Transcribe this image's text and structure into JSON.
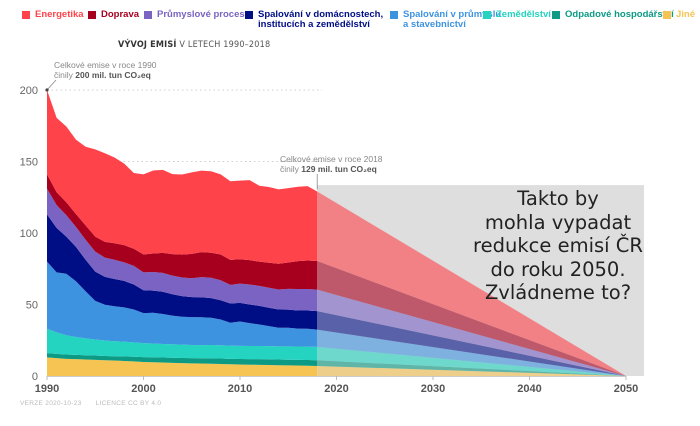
{
  "chart_data": {
    "type": "area",
    "stacked": true,
    "title": "VÝVOJ EMISÍ",
    "subtitle": "V LETECH 1990–2018",
    "xlabel": "",
    "ylabel": "",
    "xlim": [
      1990,
      2050
    ],
    "ylim": [
      0,
      200
    ],
    "x_ticks": [
      "1990",
      "2000",
      "2010",
      "2020",
      "2030",
      "2040",
      "2050"
    ],
    "y_ticks": [
      "0",
      "50",
      "100",
      "150",
      "200"
    ],
    "grid": "horizontal-dotted",
    "legend_position": "top",
    "x": [
      1990,
      1991,
      1992,
      1993,
      1994,
      1995,
      1996,
      1997,
      1998,
      1999,
      2000,
      2001,
      2002,
      2003,
      2004,
      2005,
      2006,
      2007,
      2008,
      2009,
      2010,
      2011,
      2012,
      2013,
      2014,
      2015,
      2016,
      2017,
      2018
    ],
    "series": [
      {
        "name": "Jiné",
        "color": "#f6c453",
        "values": [
          13,
          12.5,
          12,
          11.8,
          11.5,
          11.3,
          11,
          10.8,
          10.5,
          10.2,
          9.8,
          9.6,
          9.4,
          9.2,
          9,
          8.8,
          8.7,
          8.6,
          8.4,
          8.2,
          8,
          7.9,
          7.8,
          7.7,
          7.5,
          7.4,
          7.3,
          7.2,
          7
        ]
      },
      {
        "name": "Odpadové hospodářství",
        "color": "#0c9a85",
        "values": [
          3,
          3,
          3,
          3,
          3,
          3,
          3,
          3,
          3.2,
          3.3,
          3.4,
          3.5,
          3.5,
          3.6,
          3.6,
          3.7,
          3.7,
          3.8,
          3.8,
          3.8,
          3.9,
          3.9,
          4,
          4,
          4,
          4,
          4,
          4,
          4
        ]
      },
      {
        "name": "Zemědělství",
        "color": "#25d3c1",
        "values": [
          17,
          15,
          13.5,
          12.5,
          11.8,
          11.2,
          10.8,
          10.5,
          10.3,
          10,
          9.8,
          9.6,
          9.5,
          9.4,
          9.3,
          9.2,
          9.2,
          9.3,
          9.3,
          9.2,
          9.2,
          9.2,
          9.2,
          9.2,
          9.2,
          9.3,
          9.3,
          9.3,
          9.4
        ]
      },
      {
        "name": "Spalování v průmyslu a stavebnictví",
        "color": "#3e93e0",
        "values": [
          47,
          42,
          43,
          39,
          33,
          27,
          25,
          24.5,
          24,
          23,
          21,
          21.5,
          21,
          20,
          19.5,
          19.5,
          19.5,
          19,
          18,
          16,
          17,
          16,
          15,
          14,
          13,
          13,
          12.5,
          12.5,
          12
        ]
      },
      {
        "name": "Spalování v domácnostech, institucích a zemědělství",
        "color": "#000e86",
        "values": [
          33,
          31,
          26,
          24,
          22,
          20.5,
          19.5,
          19,
          18.5,
          17.5,
          16,
          15.5,
          15.5,
          15,
          14.5,
          14,
          14,
          13.8,
          13.5,
          13.5,
          13,
          13,
          13,
          12.8,
          12.8,
          12.7,
          12.7,
          12.8,
          13
        ]
      },
      {
        "name": "Průmyslové procesy",
        "color": "#7a63c3",
        "values": [
          18,
          16,
          15,
          14,
          14,
          14,
          13.5,
          13.5,
          13,
          13,
          12.5,
          13,
          13.2,
          13,
          13,
          13.2,
          14,
          14.2,
          14,
          13,
          13.5,
          14,
          14,
          14,
          14,
          14.5,
          15,
          15,
          15
        ]
      },
      {
        "name": "Doprava",
        "color": "#a7001e",
        "values": [
          10,
          9,
          9,
          9,
          10,
          10.5,
          11,
          11.5,
          12,
          12,
          12.5,
          13,
          14,
          15,
          16,
          17,
          17.5,
          17.5,
          18,
          17.5,
          17,
          17,
          17,
          17.5,
          18,
          18.5,
          19.5,
          20,
          20
        ]
      },
      {
        "name": "Energetika",
        "color": "#ff434b",
        "values": [
          59,
          52,
          53,
          52,
          55,
          61,
          62,
          60,
          57,
          53,
          56,
          58,
          58,
          56,
          56,
          57,
          57,
          57,
          56,
          55,
          55,
          56,
          53,
          53,
          52,
          52,
          52,
          52,
          48.6
        ]
      }
    ],
    "projection": {
      "from_year": 2018,
      "to_year": 2050,
      "end_value": 0,
      "box_color": "#dedede",
      "text": "Takto by mohla vypadat redukce emisí ČR do roku 2050. Zvládneme to?",
      "text_lines": [
        "Takto by",
        "mohla vypadat",
        "redukce emisí ČR",
        "do roku 2050.",
        "Zvládneme to?"
      ]
    },
    "annotations": [
      {
        "id": "a1990",
        "line1": "Celkové emise v roce 1990",
        "line2_prefix": "činily",
        "line2_bold": "200 mil. tun CO₂eq",
        "x": 1990,
        "y": 200
      },
      {
        "id": "a2018",
        "line1": "Celkové emise v roce 2018",
        "line2_prefix": "činily",
        "line2_bold": "129 mil. tun CO₂eq",
        "x": 2018,
        "y": 129
      }
    ]
  },
  "legend": [
    {
      "label": "Energetika",
      "color": "#ff434b"
    },
    {
      "label": "Doprava",
      "color": "#a7001e"
    },
    {
      "label": "Průmyslové procesy",
      "color": "#7a63c3"
    },
    {
      "label_line1": "Spalování v domácnostech,",
      "label_line2": "institucích a zemědělství",
      "color": "#000e86"
    },
    {
      "label_line1": "Spalování v průmyslu",
      "label_line2": "a stavebnictví",
      "color": "#3e93e0"
    },
    {
      "label": "Zemědělství",
      "color": "#25d3c1"
    },
    {
      "label": "Odpadové hospodářství",
      "color": "#0c9a85"
    },
    {
      "label": "Jiné",
      "color": "#f6c453"
    }
  ],
  "footer": {
    "version": "VERZE 2020-10-23",
    "license": "LICENCE CC BY 4.0"
  }
}
